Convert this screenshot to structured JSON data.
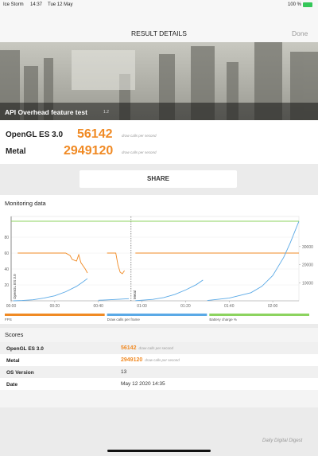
{
  "status_bar": {
    "app": "Ice Storm",
    "time": "14:37",
    "date": "Tue 12 May",
    "battery": "100 %"
  },
  "header": {
    "title": "RESULT DETAILS",
    "done": "Done"
  },
  "hero": {
    "test": "API Overhead feature test",
    "version": "1.2"
  },
  "results": [
    {
      "api": "OpenGL ES 3.0",
      "score": 56142,
      "unit": "draw calls per second"
    },
    {
      "api": "Metal",
      "score": 2949120,
      "unit": "draw calls per second"
    }
  ],
  "share": "SHARE",
  "monitoring": {
    "title": "Monitoring data"
  },
  "chart_data": {
    "type": "line",
    "xlim": [
      0,
      132
    ],
    "xticks": [
      {
        "value": 0,
        "label": "00:00"
      },
      {
        "value": 20,
        "label": "00:20"
      },
      {
        "value": 40,
        "label": "00:40"
      },
      {
        "value": 60,
        "label": "01:00"
      },
      {
        "value": 80,
        "label": "01:20"
      },
      {
        "value": 100,
        "label": "01:40"
      },
      {
        "value": 120,
        "label": "02:00"
      }
    ],
    "ylim": [
      0,
      100
    ],
    "yticks": [
      20,
      40,
      60,
      80
    ],
    "y2lim": [
      0,
      44000
    ],
    "y2ticks": [
      10000,
      20000,
      30000
    ],
    "grid": true,
    "annotations": [
      {
        "x": 0,
        "text": "OpenGL ES 3.0"
      },
      {
        "x": 55,
        "text": "Metal"
      }
    ],
    "series": [
      {
        "name": "FPS",
        "color": "#f08a24",
        "x": [
          3,
          25,
          27,
          28,
          30,
          31,
          32,
          34,
          35,
          null,
          44,
          48,
          49,
          50,
          51,
          52,
          null,
          57,
          132
        ],
        "values": [
          60,
          60,
          57,
          52,
          50,
          58,
          48,
          40,
          35,
          null,
          60,
          60,
          45,
          36,
          34,
          38,
          null,
          60,
          60
        ]
      },
      {
        "name": "Draw calls per frame",
        "color": "#5aa9e6",
        "axis": "y2",
        "x": [
          1,
          5,
          10,
          15,
          20,
          25,
          30,
          33,
          35,
          null,
          40,
          45,
          50,
          54,
          null,
          57,
          65,
          70,
          75,
          80,
          85,
          88,
          null,
          90,
          100,
          110,
          115,
          120,
          125,
          128,
          131,
          132
        ],
        "values": [
          0,
          200,
          600,
          1500,
          2800,
          5000,
          8000,
          10500,
          12300,
          null,
          300,
          600,
          900,
          1200,
          null,
          100,
          800,
          1800,
          3500,
          6000,
          9000,
          11500,
          null,
          200,
          1500,
          4500,
          8000,
          14000,
          24000,
          32000,
          41000,
          44000
        ]
      },
      {
        "name": "Battery charge %",
        "color": "#8cd35f",
        "x": [
          0,
          132
        ],
        "values": [
          100,
          100
        ]
      }
    ]
  },
  "scores": {
    "title": "Scores",
    "rows": [
      [
        "OpenGL ES 3.0",
        56142,
        "draw calls per second"
      ],
      [
        "Metal",
        2949120,
        "draw calls per second"
      ],
      [
        "OS Version",
        13
      ],
      [
        "Date",
        "May 12 2020 14:35"
      ]
    ]
  },
  "watermark": "Daily Digital Digest"
}
